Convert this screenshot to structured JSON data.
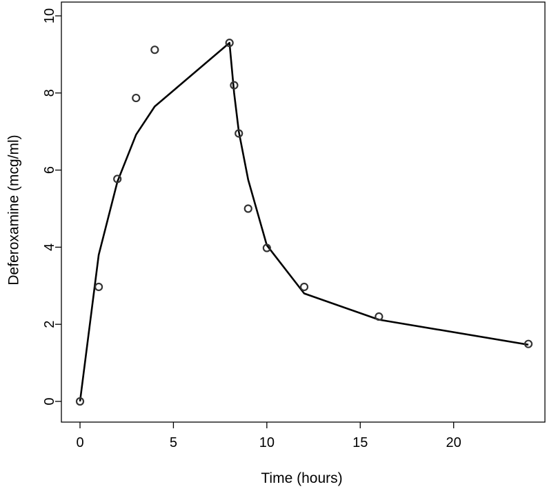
{
  "chart_data": {
    "type": "scatter",
    "title": "",
    "xlabel": "Time (hours)",
    "ylabel": "Deferoxamine (mcg/ml)",
    "xlim": [
      0,
      24
    ],
    "ylim": [
      0,
      10
    ],
    "x_ticks": [
      0,
      5,
      10,
      15,
      20
    ],
    "y_ticks": [
      0,
      2,
      4,
      6,
      8,
      10
    ],
    "x_tick_labels": [
      "0",
      "5",
      "10",
      "15",
      "20"
    ],
    "y_tick_labels": [
      "0",
      "2",
      "4",
      "6",
      "8",
      "10"
    ],
    "grid": false,
    "legend": "none",
    "series": [
      {
        "kind": "points",
        "marker": "open-circle",
        "color": "#333333",
        "x": [
          0,
          1,
          2,
          3,
          4,
          8,
          8.25,
          8.5,
          9,
          10,
          12,
          16,
          24
        ],
        "y": [
          0,
          2.97,
          5.77,
          7.87,
          9.12,
          9.3,
          8.2,
          6.95,
          5.0,
          3.98,
          2.97,
          2.2,
          1.49
        ]
      },
      {
        "kind": "fitted-line",
        "color": "#000000",
        "x": [
          0,
          1,
          2,
          3,
          4,
          8,
          8.25,
          8.5,
          9,
          10,
          12,
          16,
          24
        ],
        "y": [
          0,
          3.8,
          5.7,
          6.92,
          7.65,
          9.3,
          8.0,
          7.0,
          5.75,
          4.05,
          2.8,
          2.12,
          1.47
        ]
      }
    ]
  }
}
